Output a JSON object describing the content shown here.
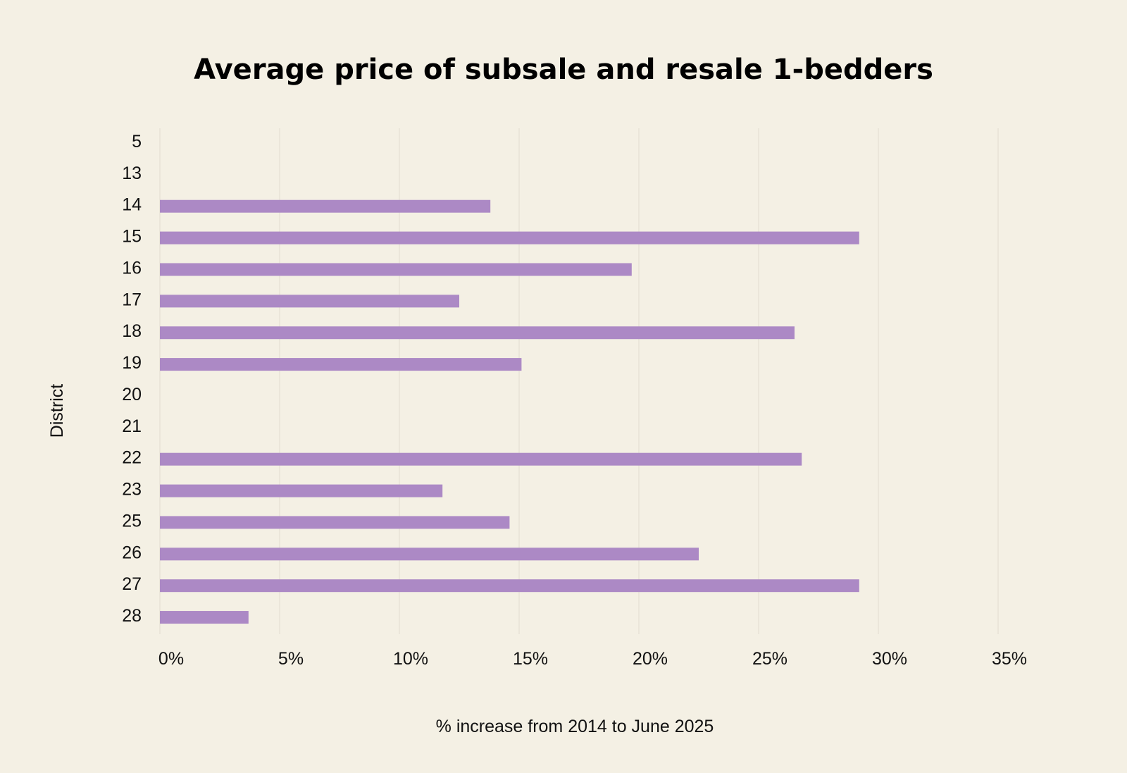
{
  "chart_data": {
    "type": "bar",
    "orientation": "horizontal",
    "title": "Average price of subsale and resale 1-bedders",
    "xlabel": "% increase from 2014 to June 2025",
    "ylabel": "District",
    "categories": [
      "5",
      "13",
      "14",
      "15",
      "16",
      "17",
      "18",
      "19",
      "20",
      "21",
      "22",
      "23",
      "25",
      "26",
      "27",
      "28"
    ],
    "values": [
      null,
      null,
      13.8,
      29.2,
      19.7,
      12.5,
      26.5,
      15.1,
      null,
      null,
      26.8,
      11.8,
      14.6,
      22.5,
      29.2,
      3.7
    ],
    "xlim": [
      0,
      35
    ],
    "xticks": [
      "0%",
      "5%",
      "10%",
      "15%",
      "20%",
      "25%",
      "30%",
      "35%"
    ],
    "xtick_values": [
      0,
      5,
      10,
      15,
      20,
      25,
      30,
      35
    ],
    "bar_color": "#ac89c5",
    "grid": true
  }
}
